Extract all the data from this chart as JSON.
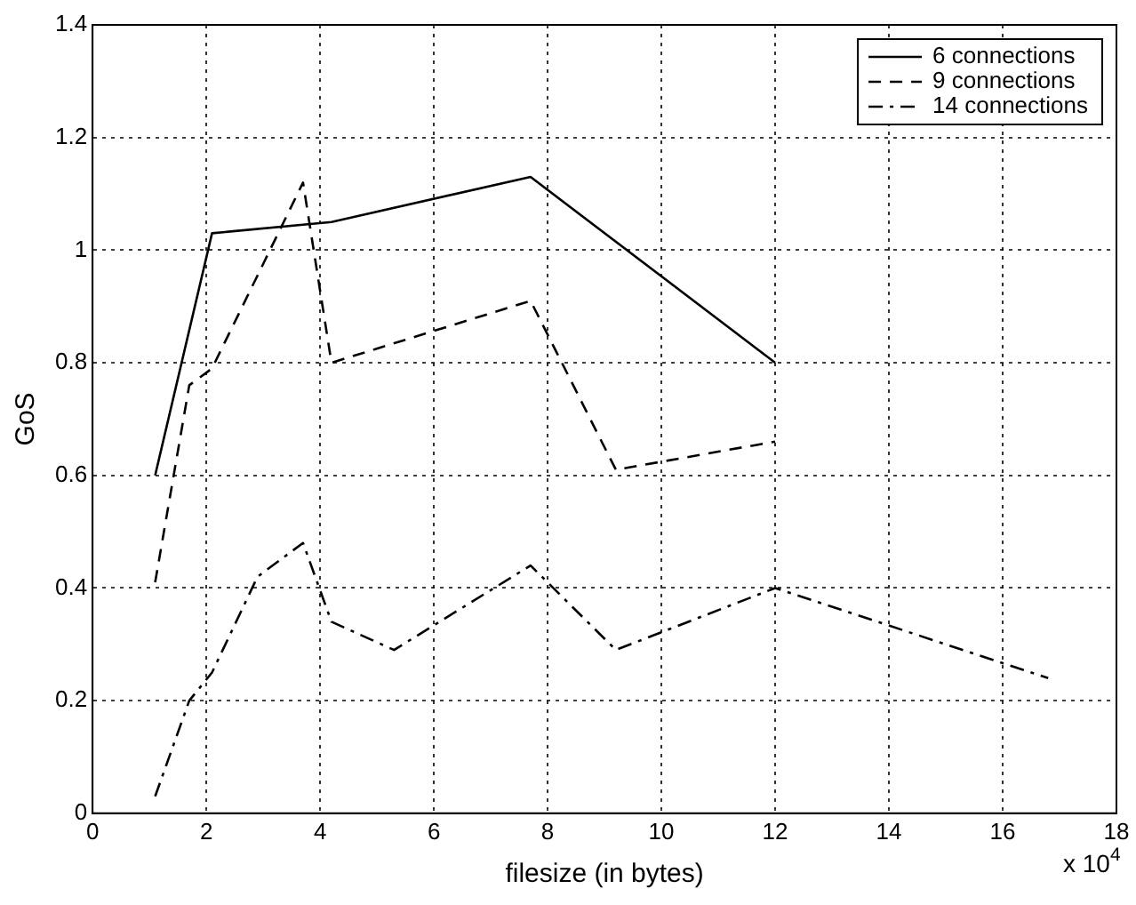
{
  "chart_data": {
    "type": "line",
    "xlabel": "filesize (in bytes)",
    "ylabel": "GoS",
    "annotations": [
      "x 10$^{4}$"
    ],
    "xlim": [
      0,
      18
    ],
    "xticks": [
      0,
      2,
      4,
      6,
      8,
      10,
      12,
      14,
      16,
      18
    ],
    "ylim": [
      0,
      1.4
    ],
    "yticks": [
      0,
      0.2,
      0.4,
      0.6,
      0.8,
      1,
      1.2,
      1.4
    ],
    "grid": true,
    "legend": "top right",
    "marker": "none",
    "series": [
      {
        "name": "6 connections",
        "color": "#000000",
        "line_style": "solid",
        "x": [
          1.1,
          2.1,
          4.2,
          7.7,
          12
        ],
        "values": [
          0.6,
          1.03,
          1.05,
          1.13,
          0.8
        ]
      },
      {
        "name": "9 connections",
        "color": "#000000",
        "line_style": "dashed",
        "x": [
          1.1,
          1.7,
          2.1,
          3.7,
          4.2,
          7.7,
          9.2,
          12
        ],
        "values": [
          0.41,
          0.76,
          0.79,
          1.12,
          0.8,
          0.91,
          0.61,
          0.66
        ]
      },
      {
        "name": "14 connections",
        "color": "#000000",
        "line_style": "dashdot",
        "x": [
          1.1,
          1.7,
          2.1,
          2.9,
          3.7,
          4.2,
          5.3,
          7.7,
          9.2,
          12,
          16.8
        ],
        "values": [
          0.03,
          0.2,
          0.25,
          0.42,
          0.48,
          0.34,
          0.29,
          0.44,
          0.29,
          0.4,
          0.24
        ]
      }
    ]
  }
}
